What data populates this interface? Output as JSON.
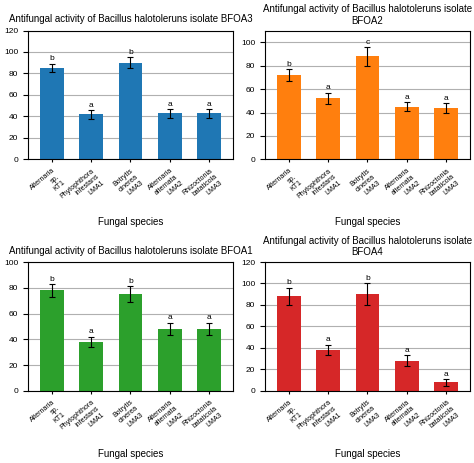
{
  "chart_data": [
    {
      "type": "bar",
      "title": "Antifungal activity of Bacillus halotoleruns isolate BFOA3",
      "x_label": "Fungal species",
      "categories": [
        "Alternaria\nsp.\nKT1",
        "Phytophthora\ninfestans\nLMA1",
        "Botrytis\ncinerea\nLMA3",
        "Alternaria\nalternata\nLMA2",
        "Rhizoctonia\nbataticola\nLMA3"
      ],
      "values": [
        85,
        42,
        90,
        43,
        43
      ],
      "errors": [
        4,
        4,
        5,
        4,
        4
      ],
      "annotations": [
        "b",
        "a",
        "b",
        "a",
        "a"
      ],
      "ylim": [
        0,
        120
      ],
      "yticks": [
        0,
        20,
        40,
        60,
        80,
        100,
        120
      ],
      "grid": true
    },
    {
      "type": "bar",
      "title": "Antifungal activity of Bacillus halotoleruns isolate BFOA2",
      "x_label": "Fungal species",
      "categories": [
        "Alternaria\nsp.\nKT1",
        "Phytophthora\ninfestans\nLMA1",
        "Botrytis\ncinerea\nLMA3",
        "Alternaria\nalternata\nLMA2",
        "Rhizoctonia\nbataticola\nLMA3"
      ],
      "values": [
        72,
        52,
        88,
        45,
        44
      ],
      "errors": [
        5,
        5,
        8,
        4,
        4
      ],
      "annotations": [
        "b",
        "a",
        "c",
        "a",
        "a"
      ],
      "ylim": [
        0,
        110
      ],
      "yticks": [
        0,
        20,
        40,
        60,
        80,
        100
      ],
      "grid": true
    },
    {
      "type": "bar",
      "title": "Antifungal activity of Bacillus halotoleruns isolate BFOA1",
      "x_label": "Fungal species",
      "categories": [
        "Alternaria\nsp.\nKT1",
        "Phytophthora\ninfestans\nLMA1",
        "Botrytis\ncinerea\nLMA3",
        "Alternaria\nalternata\nLMA2",
        "Rhizoctonia\nbataticola\nLMA3"
      ],
      "values": [
        78,
        38,
        75,
        48,
        48
      ],
      "errors": [
        5,
        4,
        6,
        5,
        5
      ],
      "annotations": [
        "b",
        "a",
        "b",
        "a",
        "a"
      ],
      "ylim": [
        0,
        100
      ],
      "yticks": [
        0,
        20,
        40,
        60,
        80,
        100
      ],
      "grid": true
    },
    {
      "type": "bar",
      "title": "Antifungal activity of Bacillus halotoleruns isolate BFOA4",
      "x_label": "Fungal species",
      "categories": [
        "Alternaria\nsp.\nKT1",
        "Phytophthora\ninfestans\nLMA1",
        "Botrytis\ncinerea\nLMA3",
        "Alternaria\nalternata\nLMA2",
        "Rhizoctonia\nbataticola\nLMA3"
      ],
      "values": [
        88,
        38,
        90,
        28,
        8
      ],
      "errors": [
        8,
        5,
        10,
        5,
        3
      ],
      "annotations": [
        "b",
        "a",
        "b",
        "a",
        "a"
      ],
      "ylim": [
        0,
        120
      ],
      "yticks": [
        0,
        20,
        40,
        60,
        80,
        100,
        120
      ],
      "grid": true
    }
  ]
}
